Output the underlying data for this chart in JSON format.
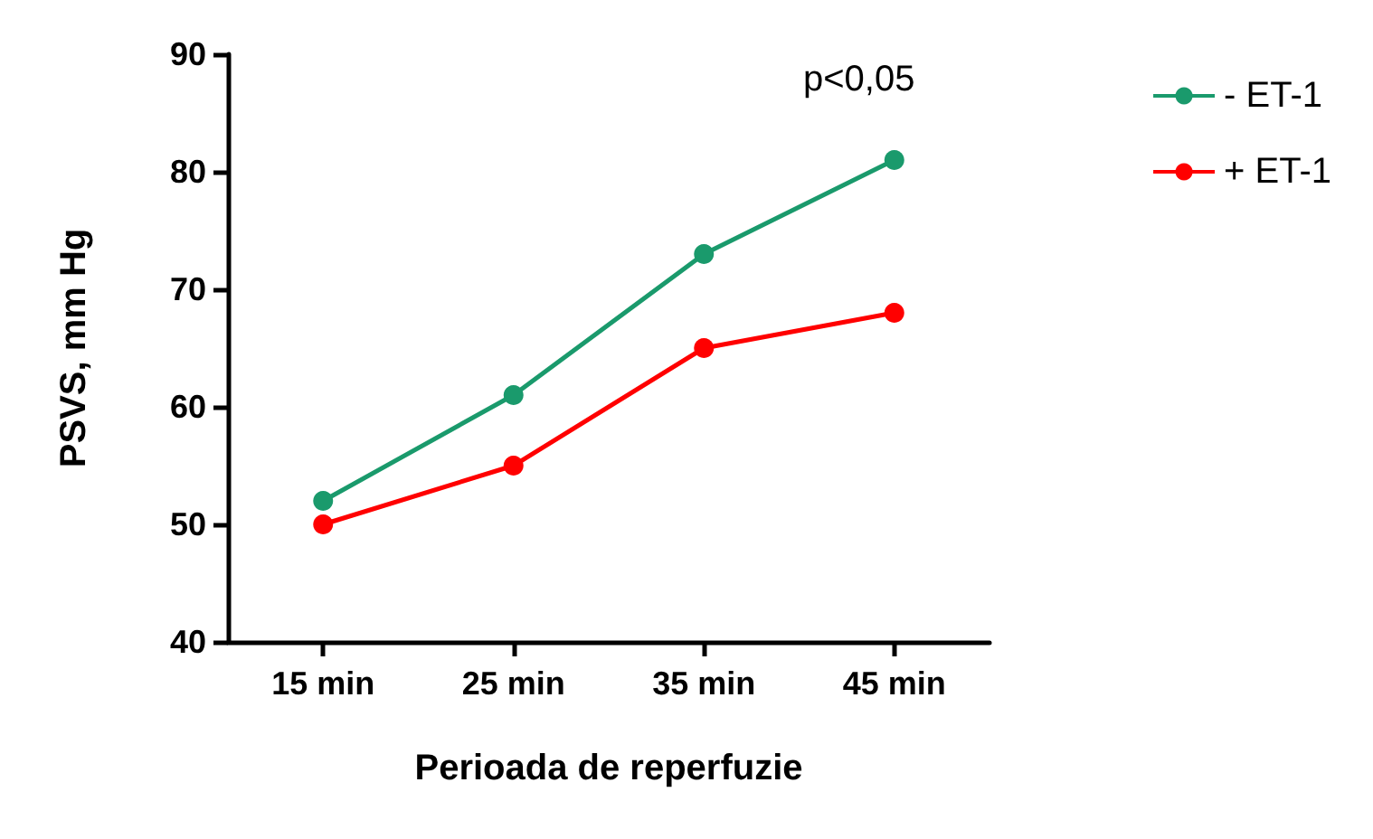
{
  "chart_data": {
    "type": "line",
    "xlabel": "Perioada de reperfuzie",
    "ylabel": "PSVS, mm Hg",
    "categories": [
      "15 min",
      "25 min",
      "35 min",
      "45 min"
    ],
    "series": [
      {
        "name": "- ET-1",
        "color": "#1a9a6c",
        "values": [
          52,
          61,
          73,
          81
        ]
      },
      {
        "name": "+ ET-1",
        "color": "#ff0000",
        "values": [
          50,
          55,
          65,
          68
        ]
      }
    ],
    "ylim": [
      40,
      90
    ],
    "yticks": [
      40,
      50,
      60,
      70,
      80,
      90
    ],
    "grid": false,
    "legend": "top right",
    "marker": "circle",
    "line_style": "solid",
    "annotations": [
      "p<0,05"
    ]
  }
}
